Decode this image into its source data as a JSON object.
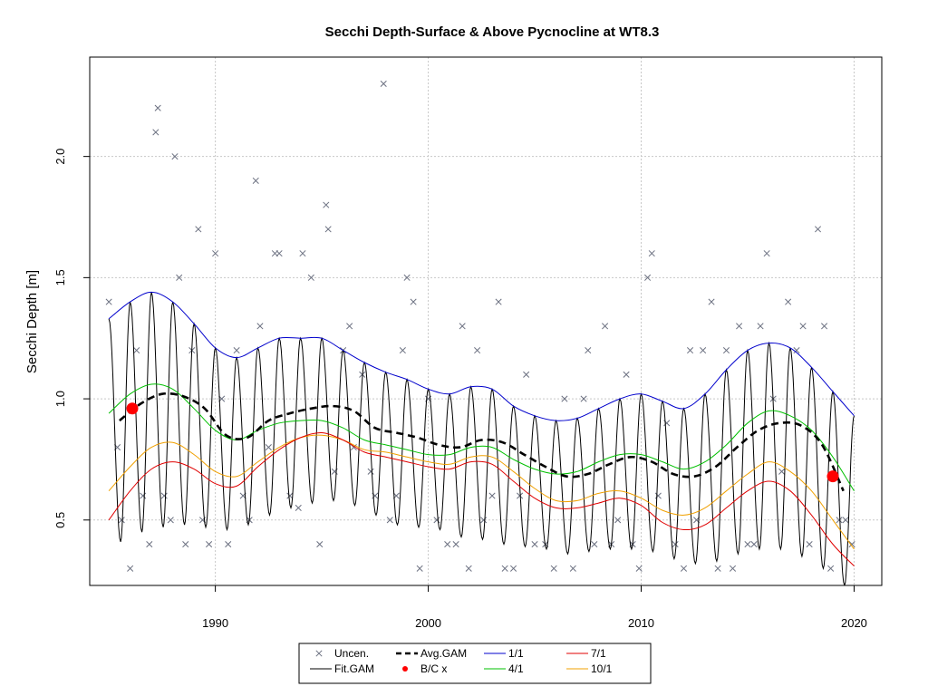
{
  "chart_data": {
    "type": "scatter",
    "title": "Secchi Depth-Surface & Above Pycnocline at WT8.3",
    "xlabel": "",
    "ylabel": "Secchi Depth [m]",
    "xlim": [
      1984.1,
      2021.3
    ],
    "ylim": [
      0.23,
      2.41
    ],
    "x_ticks": [
      1990,
      2000,
      2010,
      2020
    ],
    "y_ticks": [
      0.5,
      1.0,
      1.5,
      2.0
    ],
    "y_tick_labels": [
      "0.5",
      "1.0",
      "1.5",
      "2.0"
    ],
    "grid": true,
    "legend_position": "bottom-center",
    "legend": [
      {
        "label": "Uncen.",
        "symbol": "x",
        "color": "#6b7080"
      },
      {
        "label": "Fit.GAM",
        "symbol": "line",
        "color": "#000000"
      },
      {
        "label": "Avg.GAM",
        "symbol": "dashed-line",
        "color": "#000000"
      },
      {
        "label": "B/C x",
        "symbol": "dot",
        "color": "#ff0000"
      },
      {
        "label": "1/1",
        "symbol": "line",
        "color": "#0000cc"
      },
      {
        "label": "4/1",
        "symbol": "line",
        "color": "#00c000"
      },
      {
        "label": "7/1",
        "symbol": "line",
        "color": "#e00000"
      },
      {
        "label": "10/1",
        "symbol": "line",
        "color": "#f0a000"
      }
    ],
    "colors": {
      "uncensored": "#6b7080",
      "fit_gam": "#000000",
      "avg_gam": "#000000",
      "bc": "#ff0000",
      "d1_1": "#0000cc",
      "d4_1": "#00c000",
      "d7_1": "#e00000",
      "d10_1": "#f0a000"
    },
    "series": [
      {
        "name": "Uncen.",
        "type": "scatter",
        "x": [
          1985.0,
          1985.4,
          1985.6,
          1986.0,
          1986.3,
          1986.6,
          1986.9,
          1987.2,
          1987.3,
          1987.6,
          1987.9,
          1988.1,
          1988.3,
          1988.6,
          1988.9,
          1989.2,
          1989.4,
          1989.7,
          1990.0,
          1990.3,
          1990.6,
          1991.0,
          1991.3,
          1991.6,
          1991.9,
          1992.1,
          1992.5,
          1992.8,
          1993.0,
          1993.5,
          1993.9,
          1994.1,
          1994.5,
          1994.9,
          1995.2,
          1995.3,
          1995.6,
          1996.0,
          1996.3,
          1996.5,
          1996.9,
          1997.3,
          1997.5,
          1997.9,
          1998.2,
          1998.5,
          1998.8,
          1999.0,
          1999.3,
          1999.6,
          2000.0,
          2000.4,
          2000.9,
          2001.3,
          2001.6,
          2001.9,
          2002.3,
          2002.6,
          2003.0,
          2003.3,
          2003.6,
          2004.0,
          2004.3,
          2004.6,
          2005.0,
          2005.5,
          2005.9,
          2006.4,
          2006.8,
          2007.3,
          2007.5,
          2007.8,
          2008.3,
          2008.6,
          2008.9,
          2009.3,
          2009.6,
          2009.9,
          2010.3,
          2010.5,
          2010.8,
          2011.2,
          2011.6,
          2012.0,
          2012.3,
          2012.6,
          2012.9,
          2013.3,
          2013.6,
          2014.0,
          2014.3,
          2014.6,
          2015.0,
          2015.3,
          2015.6,
          2015.9,
          2016.2,
          2016.6,
          2016.9,
          2017.3,
          2017.6,
          2017.9,
          2018.3,
          2018.6,
          2018.9,
          2019.3,
          2019.6,
          2019.9
        ],
        "y": [
          1.4,
          0.8,
          0.5,
          0.3,
          1.2,
          0.6,
          0.4,
          2.1,
          2.2,
          0.6,
          0.5,
          2.0,
          1.5,
          0.4,
          1.2,
          1.7,
          0.5,
          0.4,
          1.6,
          1.0,
          0.4,
          1.2,
          0.6,
          0.5,
          1.9,
          1.3,
          0.8,
          1.6,
          1.6,
          0.6,
          0.55,
          1.6,
          1.5,
          0.4,
          1.8,
          1.7,
          0.7,
          1.2,
          1.3,
          0.8,
          1.1,
          0.7,
          0.6,
          2.3,
          0.5,
          0.6,
          1.2,
          1.5,
          1.4,
          0.3,
          1.0,
          0.5,
          0.4,
          0.4,
          1.3,
          0.3,
          1.2,
          0.5,
          0.6,
          1.4,
          0.3,
          0.3,
          0.6,
          1.1,
          0.4,
          0.4,
          0.3,
          1.0,
          0.3,
          1.0,
          1.2,
          0.4,
          1.3,
          0.4,
          0.5,
          1.1,
          0.4,
          0.3,
          1.5,
          1.6,
          0.6,
          0.9,
          0.4,
          0.3,
          1.2,
          0.5,
          1.2,
          1.4,
          0.3,
          1.2,
          0.3,
          1.3,
          0.4,
          0.4,
          1.3,
          1.6,
          1.0,
          0.7,
          1.4,
          1.2,
          1.3,
          0.4,
          1.7,
          1.3,
          0.3,
          0.5,
          0.5,
          0.4
        ]
      },
      {
        "name": "B/C x",
        "type": "points",
        "x": [
          1986.1,
          2019.0
        ],
        "y": [
          0.96,
          0.68
        ]
      },
      {
        "name": "Avg.GAM",
        "type": "line",
        "x": [
          1985.5,
          1986.5,
          1987.5,
          1988.5,
          1989.5,
          1990.5,
          1991.5,
          1992.5,
          1993.5,
          1994.5,
          1995.5,
          1996.5,
          1997.5,
          1998.5,
          1999.5,
          2000.5,
          2001.5,
          2002.5,
          2003.5,
          2004.5,
          2005.5,
          2006.5,
          2007.5,
          2008.5,
          2009.5,
          2010.5,
          2011.5,
          2012.5,
          2013.5,
          2014.5,
          2015.5,
          2016.5,
          2017.5,
          2018.5,
          2019.5
        ],
        "y": [
          0.91,
          0.98,
          1.02,
          1.01,
          0.96,
          0.85,
          0.84,
          0.91,
          0.94,
          0.96,
          0.97,
          0.95,
          0.88,
          0.86,
          0.84,
          0.81,
          0.8,
          0.83,
          0.82,
          0.77,
          0.72,
          0.68,
          0.69,
          0.73,
          0.76,
          0.74,
          0.69,
          0.68,
          0.72,
          0.8,
          0.87,
          0.9,
          0.89,
          0.81,
          0.62
        ]
      },
      {
        "name": "1/1",
        "type": "line",
        "x": [
          1985.0,
          1986.0,
          1987.0,
          1988.0,
          1989.0,
          1990.0,
          1991.0,
          1992.0,
          1993.0,
          1994.0,
          1995.0,
          1996.0,
          1997.0,
          1998.0,
          1999.0,
          2000.0,
          2001.0,
          2002.0,
          2003.0,
          2004.0,
          2005.0,
          2006.0,
          2007.0,
          2008.0,
          2009.0,
          2010.0,
          2011.0,
          2012.0,
          2013.0,
          2014.0,
          2015.0,
          2016.0,
          2017.0,
          2018.0,
          2019.0,
          2020.0
        ],
        "y": [
          1.33,
          1.4,
          1.44,
          1.4,
          1.31,
          1.21,
          1.17,
          1.21,
          1.25,
          1.25,
          1.25,
          1.2,
          1.15,
          1.11,
          1.08,
          1.04,
          1.02,
          1.05,
          1.04,
          0.97,
          0.93,
          0.91,
          0.92,
          0.96,
          1.0,
          1.02,
          0.99,
          0.96,
          1.02,
          1.12,
          1.2,
          1.23,
          1.21,
          1.13,
          1.03,
          0.93
        ]
      },
      {
        "name": "4/1",
        "type": "line",
        "x": [
          1985.0,
          1986.0,
          1987.0,
          1988.0,
          1989.0,
          1990.0,
          1991.0,
          1992.0,
          1993.0,
          1994.0,
          1995.0,
          1996.0,
          1997.0,
          1998.0,
          1999.0,
          2000.0,
          2001.0,
          2002.0,
          2003.0,
          2004.0,
          2005.0,
          2006.0,
          2007.0,
          2008.0,
          2009.0,
          2010.0,
          2011.0,
          2012.0,
          2013.0,
          2014.0,
          2015.0,
          2016.0,
          2017.0,
          2018.0,
          2019.0,
          2020.0
        ],
        "y": [
          0.94,
          1.02,
          1.06,
          1.04,
          0.96,
          0.87,
          0.83,
          0.87,
          0.9,
          0.91,
          0.91,
          0.88,
          0.83,
          0.81,
          0.79,
          0.77,
          0.77,
          0.8,
          0.8,
          0.75,
          0.71,
          0.69,
          0.7,
          0.74,
          0.77,
          0.77,
          0.74,
          0.71,
          0.74,
          0.81,
          0.9,
          0.95,
          0.93,
          0.87,
          0.76,
          0.62
        ]
      },
      {
        "name": "7/1",
        "type": "line",
        "x": [
          1985.0,
          1986.0,
          1987.0,
          1988.0,
          1989.0,
          1990.0,
          1991.0,
          1992.0,
          1993.0,
          1994.0,
          1995.0,
          1996.0,
          1997.0,
          1998.0,
          1999.0,
          2000.0,
          2001.0,
          2002.0,
          2003.0,
          2004.0,
          2005.0,
          2006.0,
          2007.0,
          2008.0,
          2009.0,
          2010.0,
          2011.0,
          2012.0,
          2013.0,
          2014.0,
          2015.0,
          2016.0,
          2017.0,
          2018.0,
          2019.0,
          2020.0
        ],
        "y": [
          0.5,
          0.62,
          0.71,
          0.74,
          0.71,
          0.65,
          0.64,
          0.72,
          0.79,
          0.84,
          0.86,
          0.83,
          0.78,
          0.76,
          0.74,
          0.72,
          0.71,
          0.74,
          0.73,
          0.66,
          0.59,
          0.55,
          0.55,
          0.57,
          0.59,
          0.56,
          0.49,
          0.46,
          0.48,
          0.55,
          0.62,
          0.66,
          0.62,
          0.52,
          0.4,
          0.31
        ]
      },
      {
        "name": "10/1",
        "type": "line",
        "x": [
          1985.0,
          1986.0,
          1987.0,
          1988.0,
          1989.0,
          1990.0,
          1991.0,
          1992.0,
          1993.0,
          1994.0,
          1995.0,
          1996.0,
          1997.0,
          1998.0,
          1999.0,
          2000.0,
          2001.0,
          2002.0,
          2003.0,
          2004.0,
          2005.0,
          2006.0,
          2007.0,
          2008.0,
          2009.0,
          2010.0,
          2011.0,
          2012.0,
          2013.0,
          2014.0,
          2015.0,
          2016.0,
          2017.0,
          2018.0,
          2019.0,
          2020.0
        ],
        "y": [
          0.62,
          0.72,
          0.8,
          0.82,
          0.77,
          0.7,
          0.68,
          0.74,
          0.8,
          0.84,
          0.85,
          0.83,
          0.79,
          0.78,
          0.76,
          0.74,
          0.73,
          0.76,
          0.76,
          0.7,
          0.63,
          0.58,
          0.58,
          0.61,
          0.62,
          0.59,
          0.54,
          0.52,
          0.55,
          0.62,
          0.69,
          0.74,
          0.7,
          0.62,
          0.5,
          0.38
        ]
      },
      {
        "name": "Fit.GAM",
        "type": "line",
        "peaks_x": [
          1985.0,
          1986.0,
          1987.0,
          1988.0,
          1989.0,
          1990.0,
          1991.0,
          1992.0,
          1993.0,
          1994.0,
          1995.0,
          1996.0,
          1997.0,
          1998.0,
          1999.0,
          2000.0,
          2001.0,
          2002.0,
          2003.0,
          2004.0,
          2005.0,
          2006.0,
          2007.0,
          2008.0,
          2009.0,
          2010.0,
          2011.0,
          2012.0,
          2013.0,
          2014.0,
          2015.0,
          2016.0,
          2017.0,
          2018.0,
          2019.0,
          2020.0
        ],
        "peaks_y": [
          1.33,
          1.4,
          1.44,
          1.4,
          1.31,
          1.21,
          1.17,
          1.21,
          1.25,
          1.25,
          1.25,
          1.2,
          1.15,
          1.11,
          1.08,
          1.04,
          1.02,
          1.05,
          1.04,
          0.97,
          0.93,
          0.91,
          0.92,
          0.96,
          1.0,
          1.02,
          0.99,
          0.96,
          1.02,
          1.12,
          1.2,
          1.23,
          1.21,
          1.13,
          1.03,
          0.93
        ],
        "troughs_x": [
          1985.55,
          1986.55,
          1987.55,
          1988.55,
          1989.55,
          1990.55,
          1991.55,
          1992.55,
          1993.55,
          1994.55,
          1995.55,
          1996.55,
          1997.55,
          1998.55,
          1999.55,
          2000.55,
          2001.55,
          2002.55,
          2003.55,
          2004.55,
          2005.55,
          2006.55,
          2007.55,
          2008.55,
          2009.55,
          2010.55,
          2011.55,
          2012.55,
          2013.55,
          2014.55,
          2015.55,
          2016.55,
          2017.55,
          2018.55,
          2019.55
        ],
        "troughs_y": [
          0.41,
          0.45,
          0.47,
          0.48,
          0.47,
          0.46,
          0.48,
          0.52,
          0.55,
          0.57,
          0.58,
          0.56,
          0.52,
          0.48,
          0.47,
          0.46,
          0.43,
          0.42,
          0.4,
          0.39,
          0.38,
          0.36,
          0.37,
          0.38,
          0.38,
          0.37,
          0.34,
          0.32,
          0.33,
          0.36,
          0.38,
          0.38,
          0.35,
          0.3,
          0.23
        ]
      }
    ]
  }
}
